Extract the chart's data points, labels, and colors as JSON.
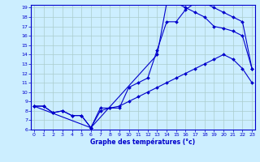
{
  "title": "Graphe des températures (°c)",
  "background_color": "#cceeff",
  "grid_color": "#aacccc",
  "line_color": "#0000cc",
  "x_min": 0,
  "x_max": 23,
  "y_min": 6,
  "y_max": 19,
  "line1_x": [
    0,
    1,
    2,
    3,
    4,
    5,
    6,
    7,
    8,
    9,
    10,
    11,
    12,
    13,
    14,
    15,
    16,
    17,
    18,
    19,
    20,
    21,
    22,
    23
  ],
  "line1_y": [
    8.5,
    8.5,
    7.8,
    8.0,
    7.5,
    7.5,
    6.2,
    8.3,
    8.3,
    8.5,
    9.0,
    9.5,
    10.0,
    10.5,
    11.0,
    11.5,
    12.0,
    12.5,
    13.0,
    13.5,
    14.0,
    13.5,
    12.5,
    11.0
  ],
  "line2_x": [
    0,
    1,
    2,
    3,
    4,
    5,
    6,
    7,
    8,
    9,
    10,
    11,
    12,
    13,
    14,
    15,
    16,
    17,
    18,
    19,
    20,
    21,
    22,
    23
  ],
  "line2_y": [
    8.5,
    8.5,
    7.8,
    8.0,
    7.5,
    7.5,
    6.2,
    8.0,
    8.3,
    8.3,
    10.5,
    11.0,
    11.5,
    14.5,
    17.5,
    17.5,
    18.8,
    19.5,
    19.5,
    19.0,
    18.5,
    18.0,
    17.5,
    12.5
  ],
  "line3_x": [
    0,
    6,
    13,
    14,
    15,
    16,
    17,
    18,
    19,
    20,
    21,
    22,
    23
  ],
  "line3_y": [
    8.5,
    6.2,
    14.0,
    19.5,
    19.5,
    19.0,
    18.5,
    18.0,
    17.0,
    16.8,
    16.5,
    16.0,
    12.5
  ]
}
